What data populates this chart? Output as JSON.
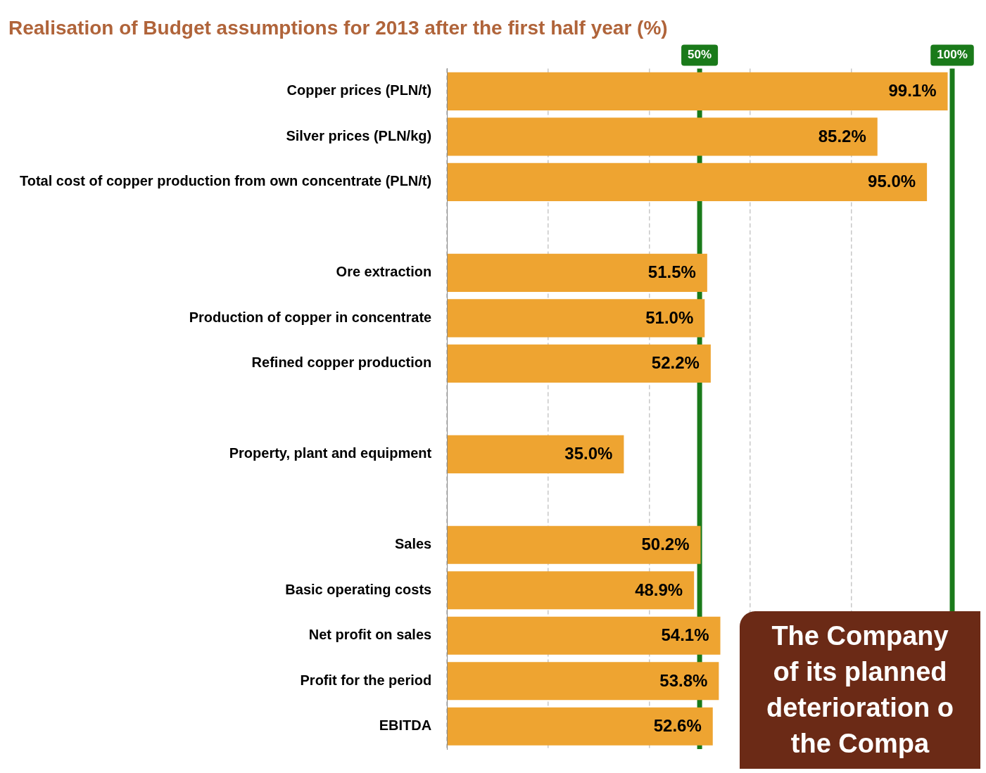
{
  "chart_data": {
    "type": "bar",
    "orientation": "horizontal",
    "title": "Realisation of Budget assumptions for 2013 after the first half year (%)",
    "categories": [
      "Copper prices (PLN/t)",
      "Silver prices (PLN/kg)",
      "Total cost of copper production from own concentrate (PLN/t)",
      null,
      "Ore extraction",
      "Production of copper in concentrate",
      "Refined copper production",
      null,
      "Property, plant and equipment",
      null,
      "Sales",
      "Basic operating costs",
      "Net profit on sales",
      "Profit for the period",
      "EBITDA"
    ],
    "values": [
      99.1,
      85.2,
      95.0,
      null,
      51.5,
      51.0,
      52.2,
      null,
      35.0,
      null,
      50.2,
      48.9,
      54.1,
      53.8,
      52.6
    ],
    "value_labels": [
      "99.1%",
      "85.2%",
      "95.0%",
      null,
      "51.5%",
      "51.0%",
      "52.2%",
      null,
      "35.0%",
      null,
      "50.2%",
      "48.9%",
      "54.1%",
      "53.8%",
      "52.6%"
    ],
    "color": "#eea431",
    "xlim": [
      0,
      100
    ],
    "xticks": [
      {
        "value": 0,
        "label": null
      },
      {
        "value": 20,
        "label": null
      },
      {
        "value": 40,
        "label": null
      },
      {
        "value": 60,
        "label": null
      },
      {
        "value": 80,
        "label": null
      },
      {
        "value": 100,
        "label": null
      }
    ],
    "grid": "x",
    "tick_labels": "y",
    "legend": false,
    "ref_lines": [
      {
        "axis": "x",
        "value": 100,
        "label": "100%",
        "color": "#1a7a1a"
      },
      {
        "axis": "x",
        "value": 50,
        "label": "50%",
        "color": "#1a7a1a"
      }
    ],
    "annotations": [
      "The Company\nof its planned\ndeterioration o\nthe Compa"
    ]
  }
}
